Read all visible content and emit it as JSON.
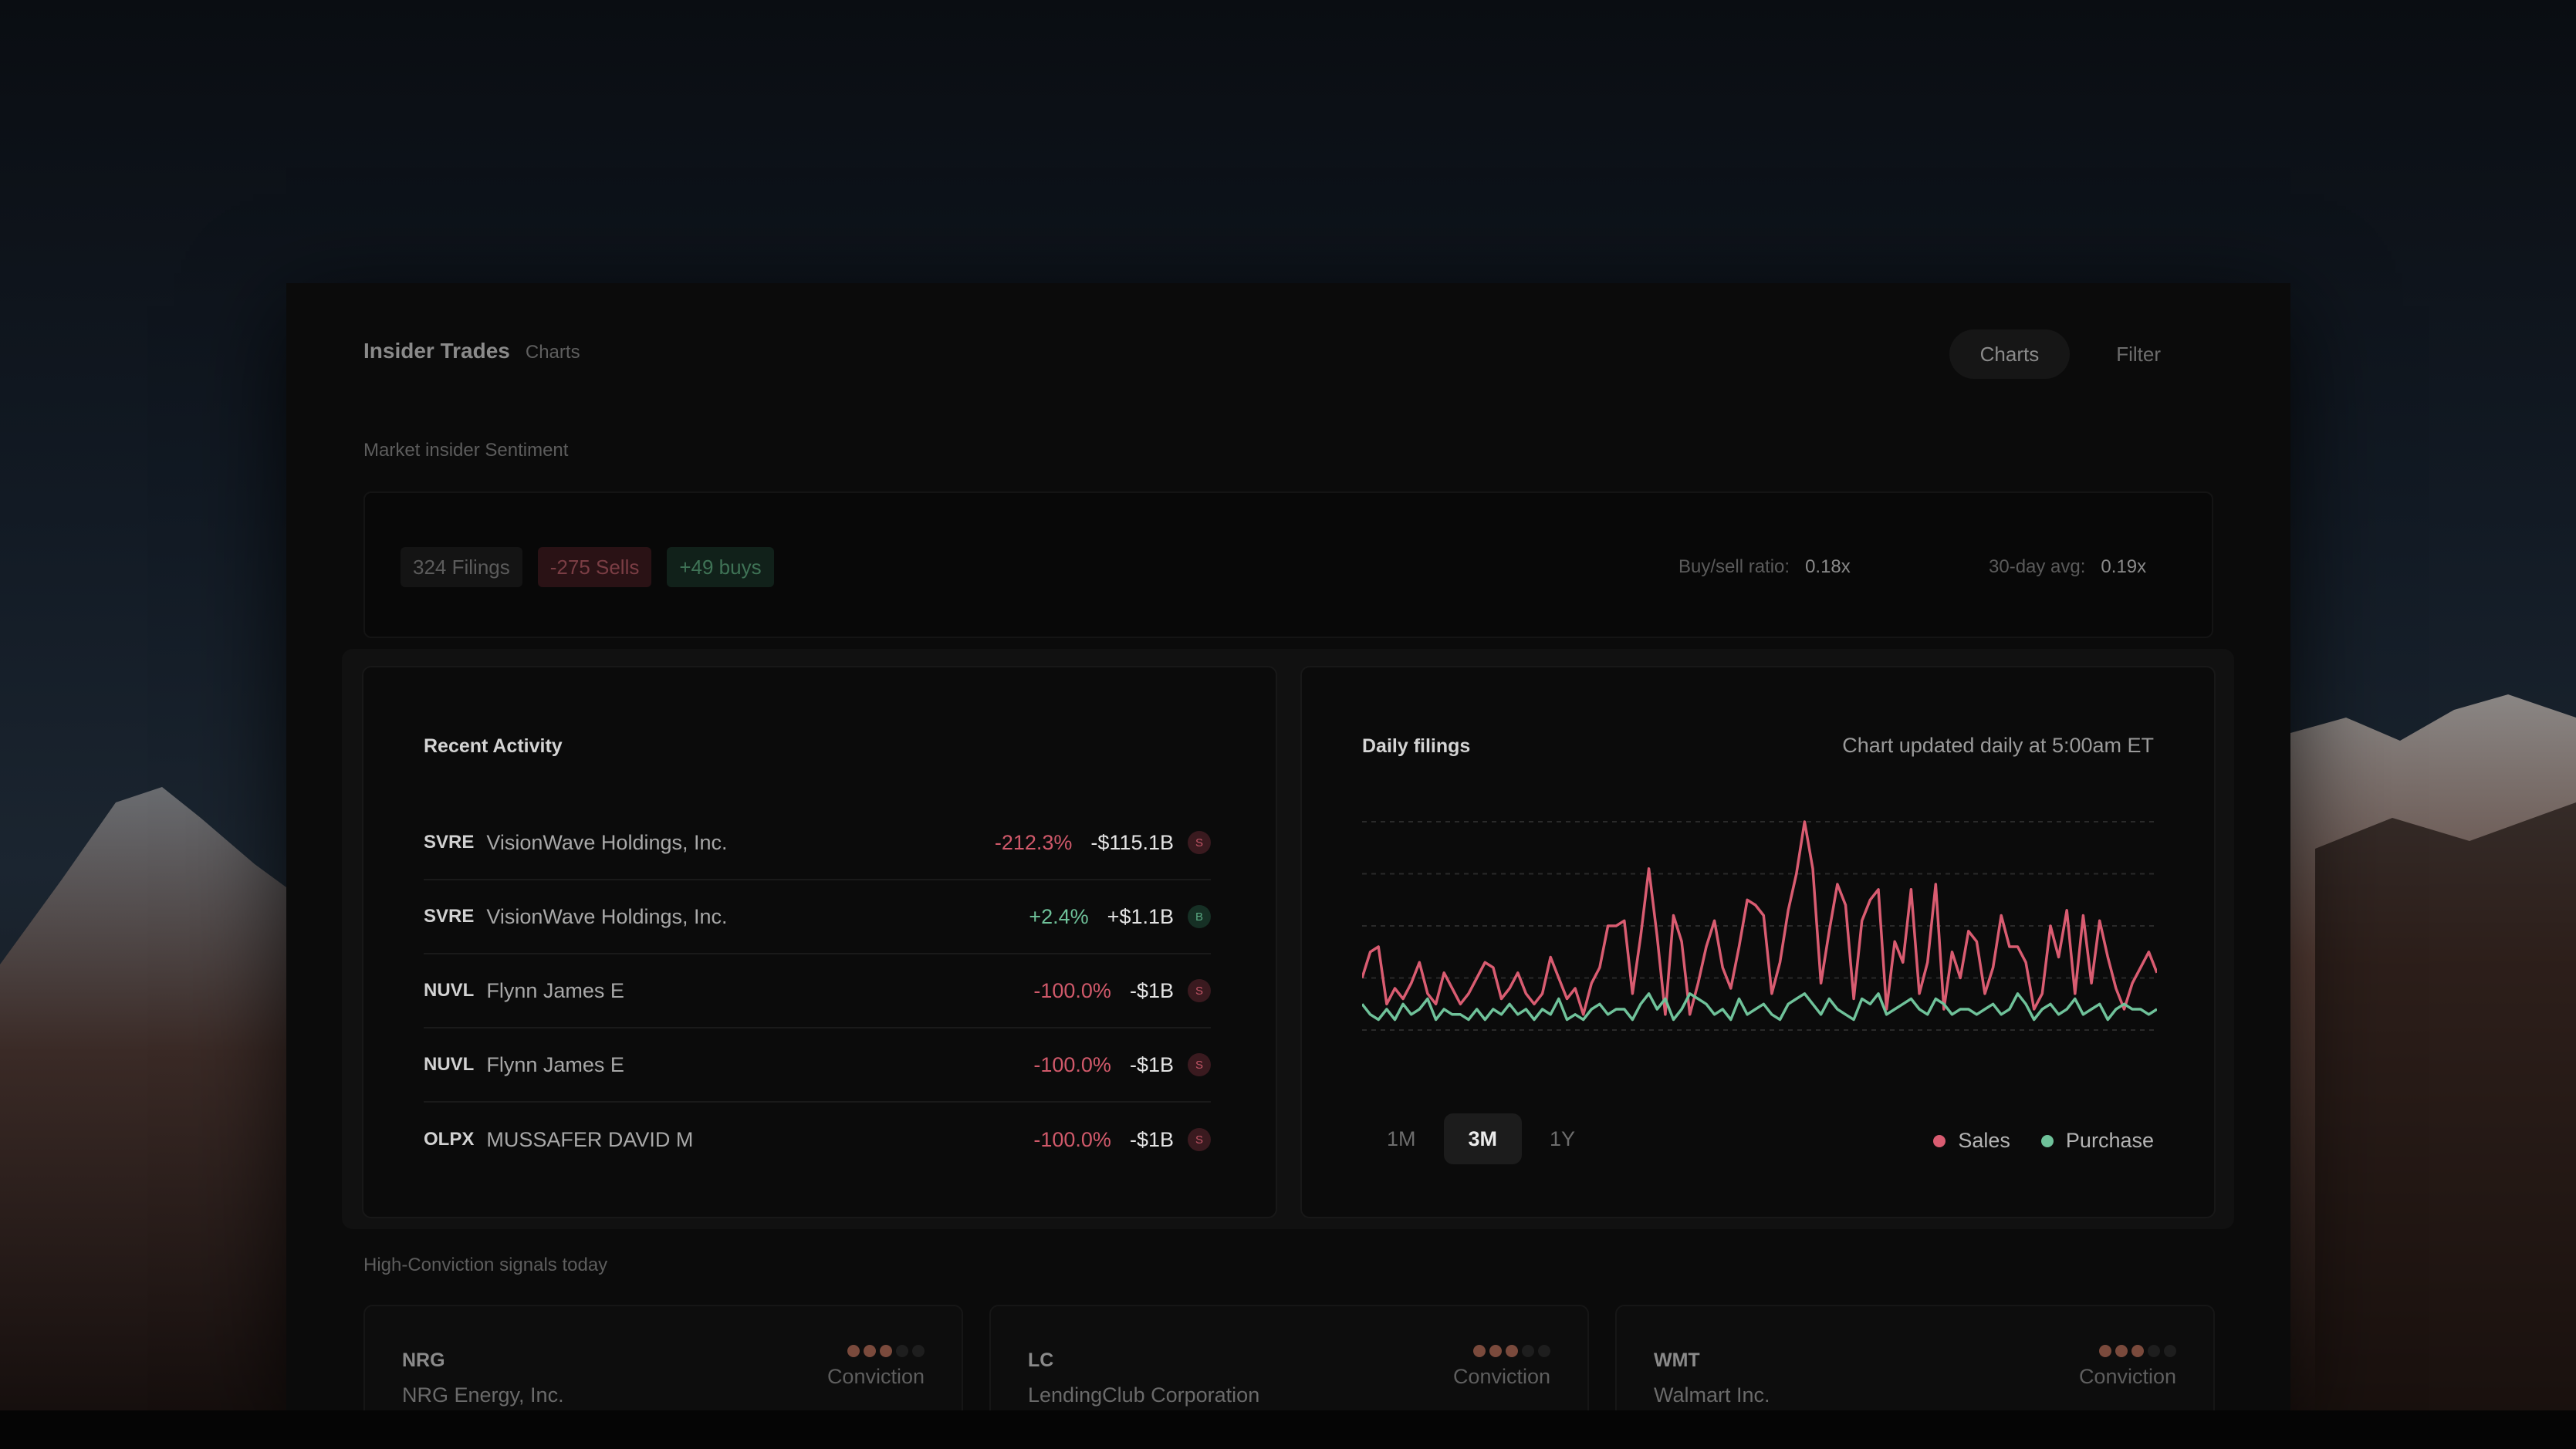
{
  "header": {
    "title": "Insider Trades",
    "subtitle": "Charts",
    "buttons": {
      "charts": "Charts",
      "filter": "Filter"
    }
  },
  "sentiment": {
    "label": "Market insider Sentiment",
    "filings": "324 Filings",
    "sells": "-275 Sells",
    "buys": "+49 buys",
    "buy_sell_ratio_label": "Buy/sell ratio:",
    "buy_sell_ratio_value": "0.18x",
    "avg_label": "30-day avg:",
    "avg_value": "0.19x"
  },
  "recent_activity": {
    "title": "Recent Activity",
    "rows": [
      {
        "ticker": "SVRE",
        "name": "VisionWave Holdings, Inc.",
        "pct": "-212.3%",
        "amount": "-$115.1B",
        "type": "S"
      },
      {
        "ticker": "SVRE",
        "name": "VisionWave Holdings, Inc.",
        "pct": "+2.4%",
        "amount": "+$1.1B",
        "type": "B"
      },
      {
        "ticker": "NUVL",
        "name": "Flynn James E",
        "pct": "-100.0%",
        "amount": "-$1B",
        "type": "S"
      },
      {
        "ticker": "NUVL",
        "name": "Flynn James E",
        "pct": "-100.0%",
        "amount": "-$1B",
        "type": "S"
      },
      {
        "ticker": "OLPX",
        "name": "MUSSAFER DAVID M",
        "pct": "-100.0%",
        "amount": "-$1B",
        "type": "S"
      }
    ]
  },
  "daily_filings": {
    "title": "Daily filings",
    "note": "Chart updated daily at 5:00am ET",
    "ranges": [
      "1M",
      "3M",
      "1Y"
    ],
    "active_range": "3M",
    "legend": {
      "sales": "Sales",
      "purchase": "Purchase"
    }
  },
  "chart_data": {
    "type": "line",
    "title": "Daily filings",
    "xlabel": "",
    "ylabel": "",
    "ylim": [
      0,
      40
    ],
    "grid": true,
    "legend_position": "bottom-right",
    "series": [
      {
        "name": "Sales",
        "color": "#d95c71",
        "values": [
          10,
          15,
          16,
          5,
          8,
          6,
          9,
          13,
          7,
          5,
          11,
          8,
          5,
          7,
          10,
          13,
          12,
          6,
          8,
          11,
          7,
          5,
          7,
          14,
          10,
          6,
          8,
          3,
          9,
          12,
          20,
          20,
          21,
          7,
          18,
          31,
          18,
          3,
          22,
          17,
          3,
          9,
          16,
          21,
          12,
          8,
          16,
          25,
          24,
          22,
          7,
          13,
          23,
          30,
          40,
          31,
          9,
          19,
          28,
          24,
          6,
          21,
          25,
          27,
          4,
          17,
          13,
          27,
          7,
          13,
          28,
          4,
          15,
          10,
          19,
          17,
          7,
          12,
          22,
          16,
          16,
          13,
          4,
          7,
          20,
          14,
          23,
          7,
          22,
          9,
          21,
          14,
          8,
          4,
          9,
          12,
          15,
          11
        ]
      },
      {
        "name": "Purchase",
        "color": "#6fc29a",
        "values": [
          5,
          3,
          2,
          4,
          2,
          5,
          3,
          4,
          6,
          2,
          4,
          3,
          3,
          2,
          4,
          2,
          4,
          3,
          5,
          3,
          4,
          2,
          4,
          3,
          6,
          2,
          3,
          2,
          4,
          5,
          3,
          4,
          4,
          2,
          5,
          7,
          4,
          6,
          2,
          4,
          7,
          6,
          5,
          3,
          4,
          2,
          6,
          3,
          4,
          5,
          3,
          2,
          5,
          6,
          7,
          5,
          3,
          6,
          4,
          3,
          2,
          6,
          5,
          7,
          3,
          4,
          5,
          6,
          4,
          3,
          6,
          5,
          3,
          4,
          4,
          3,
          4,
          5,
          3,
          4,
          7,
          5,
          2,
          4,
          5,
          3,
          4,
          6,
          3,
          4,
          5,
          2,
          4,
          5,
          4,
          4,
          3,
          4
        ]
      }
    ]
  },
  "signals": {
    "label": "High-Conviction signals today",
    "conviction_label": "Conviction",
    "cards": [
      {
        "ticker": "NRG",
        "name": "NRG Energy, Inc.",
        "conviction": 3,
        "max": 5
      },
      {
        "ticker": "LC",
        "name": "LendingClub Corporation",
        "conviction": 3,
        "max": 5
      },
      {
        "ticker": "WMT",
        "name": "Walmart Inc.",
        "conviction": 3,
        "max": 5
      }
    ]
  }
}
